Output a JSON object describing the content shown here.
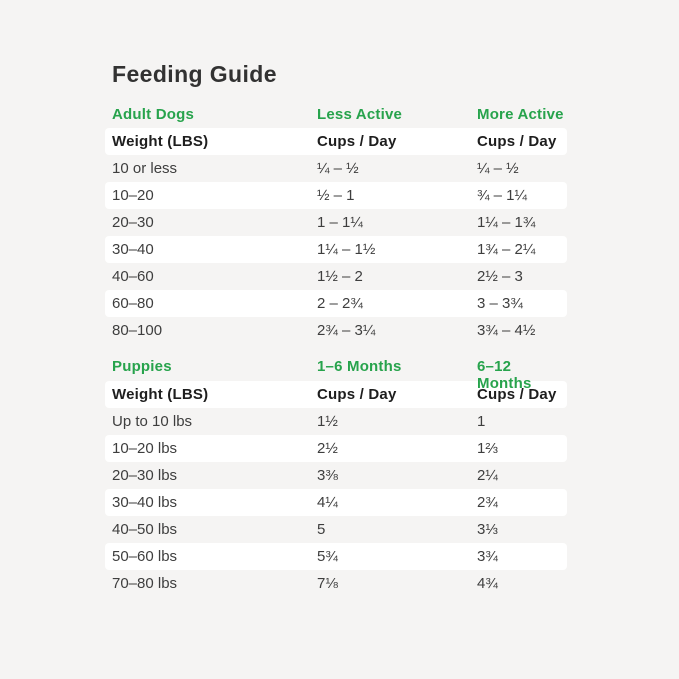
{
  "title": "Feeding Guide",
  "colors": {
    "accent_green": "#27a34c",
    "page_background": "#f5f4f3",
    "row_stripe_white": "#ffffff",
    "title_text": "#323232",
    "body_text": "#3e3e3e"
  },
  "sections": [
    {
      "id": "adult-dogs",
      "header": [
        "Adult Dogs",
        "Less Active",
        "More Active"
      ],
      "subheader": [
        "Weight (LBS)",
        "Cups / Day",
        "Cups / Day"
      ],
      "rows": [
        [
          "10 or less",
          "¼ – ½",
          "¼ – ½"
        ],
        [
          "10–20",
          "½ – 1",
          "¾ – 1¼"
        ],
        [
          "20–30",
          "1 – 1¼",
          "1¼ – 1¾"
        ],
        [
          "30–40",
          "1¼ – 1½",
          "1¾ – 2¼"
        ],
        [
          "40–60",
          "1½ – 2",
          "2½ – 3"
        ],
        [
          "60–80",
          "2 – 2¾",
          "3 – 3¾"
        ],
        [
          "80–100",
          "2¾ – 3¼",
          "3¾ – 4½"
        ]
      ]
    },
    {
      "id": "puppies",
      "header": [
        "Puppies",
        "1–6 Months",
        "6–12 Months"
      ],
      "subheader": [
        "Weight (LBS)",
        "Cups / Day",
        "Cups / Day"
      ],
      "rows": [
        [
          "Up to 10 lbs",
          "1½",
          "1"
        ],
        [
          "10–20 lbs",
          "2½",
          "1⅔"
        ],
        [
          "20–30 lbs",
          "3⅜",
          "2¼"
        ],
        [
          "30–40 lbs",
          "4¼",
          "2¾"
        ],
        [
          "40–50 lbs",
          "5",
          "3⅓"
        ],
        [
          "50–60 lbs",
          "5¾",
          "3¾"
        ],
        [
          "70–80 lbs",
          "7⅛",
          "4¾"
        ]
      ]
    }
  ]
}
